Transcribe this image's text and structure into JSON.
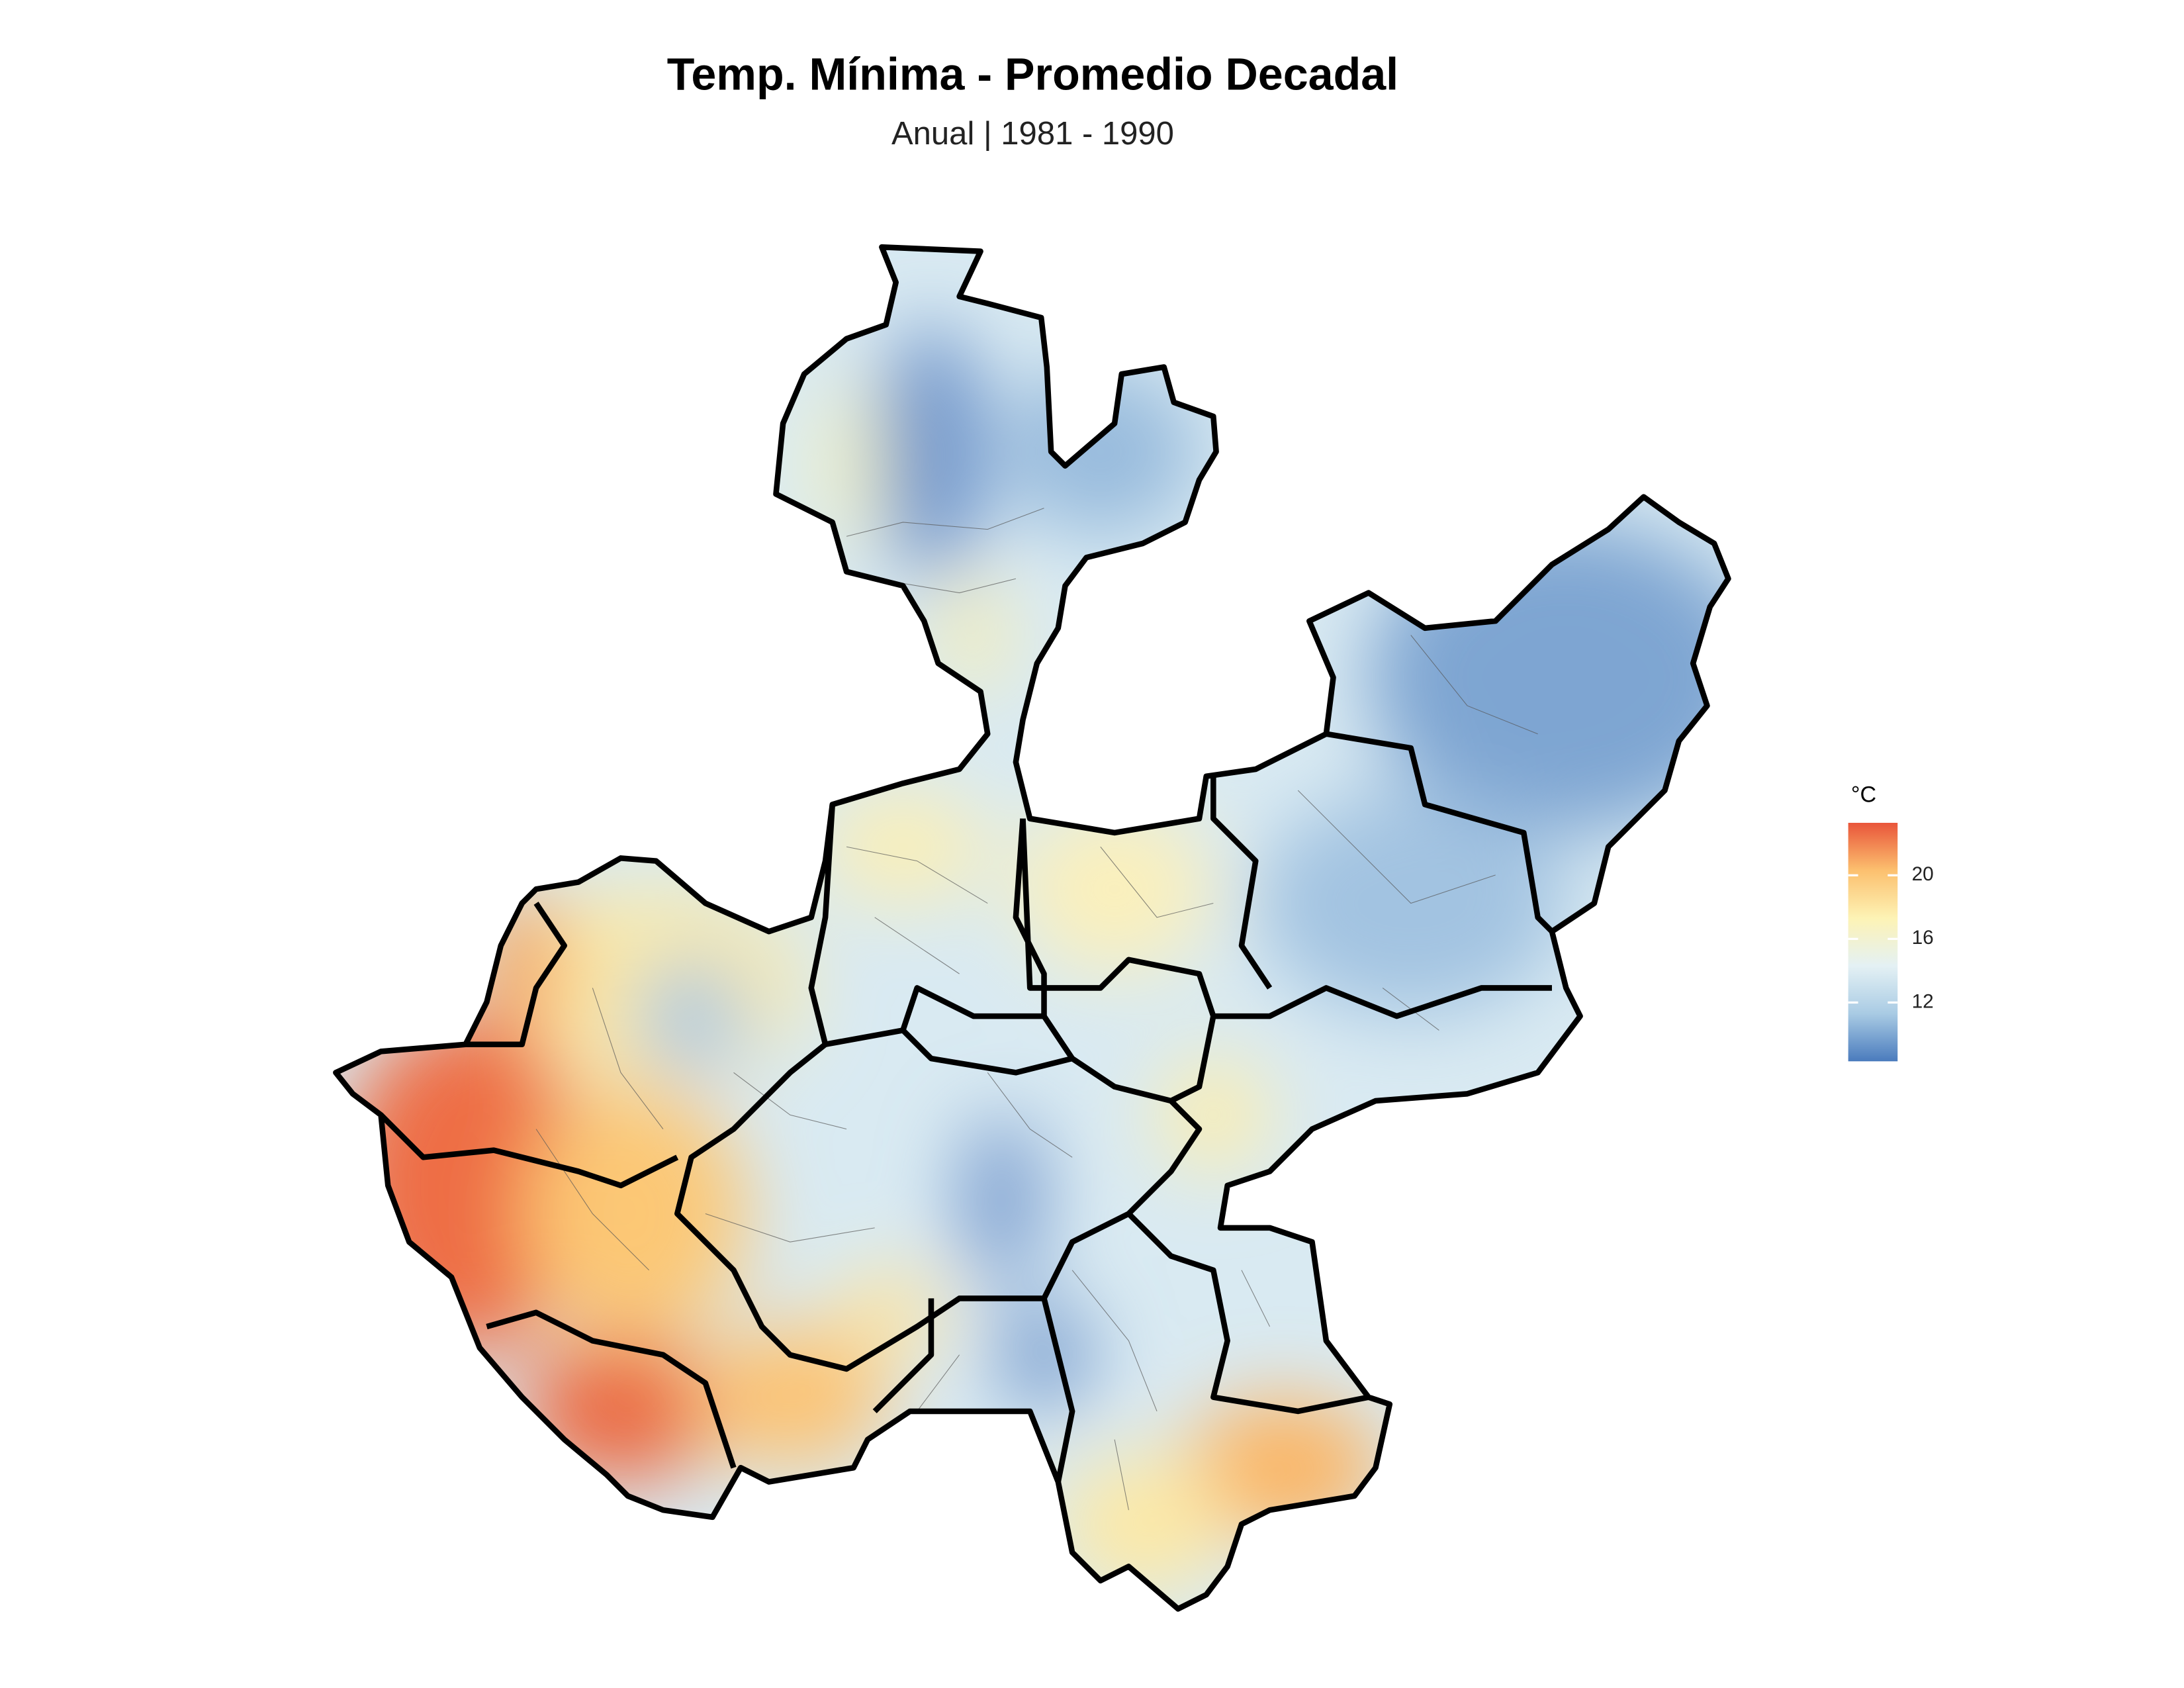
{
  "chart_data": {
    "type": "choropleth",
    "title": "Temp. Mínima - Promedio Decadal",
    "subtitle": "Anual | 1981 - 1990",
    "legend_title": "°C",
    "clim": [
      8.3,
      23.3
    ],
    "ticks": [
      12,
      16,
      20
    ],
    "colorscale": [
      "#4a7bbd",
      "#a9cbe4",
      "#e4f1f4",
      "#fdf3b5",
      "#fcc06f",
      "#e9553a"
    ]
  }
}
